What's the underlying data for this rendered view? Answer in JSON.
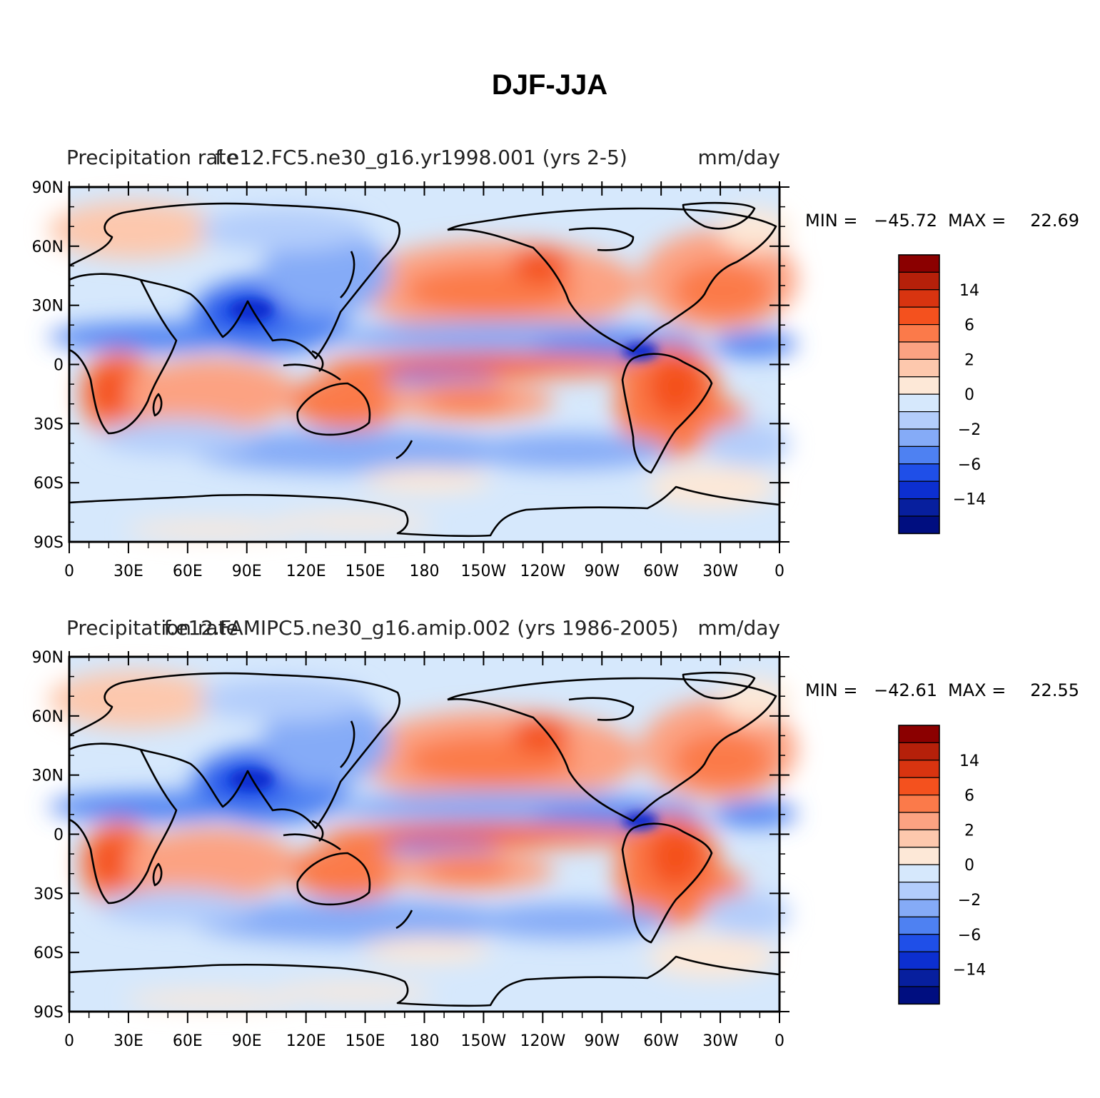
{
  "title": "DJF-JJA",
  "panels": [
    {
      "left_label": "Precipitation rate",
      "center_label": "f.e12.FC5.ne30_g16.yr1998.001 (yrs 2-5)",
      "right_label": "mm/day",
      "min_label": "MIN =",
      "min_value": "−45.72",
      "max_label": "MAX =",
      "max_value": "22.69"
    },
    {
      "left_label": "Precipitation rate",
      "center_label": "f.e12.FAMIPC5.ne30_g16.amip.002 (yrs 1986-2005)",
      "right_label": "mm/day",
      "min_label": "MIN =",
      "min_value": "−42.61",
      "max_label": "MAX =",
      "max_value": "22.55"
    }
  ],
  "axes": {
    "lat_labels": [
      "90N",
      "60N",
      "30N",
      "0",
      "30S",
      "60S",
      "90S"
    ],
    "lon_labels": [
      "0",
      "30E",
      "60E",
      "90E",
      "120E",
      "150E",
      "180",
      "150W",
      "120W",
      "90W",
      "60W",
      "30W",
      "0"
    ]
  },
  "colorbar": {
    "labels": [
      "14",
      "6",
      "2",
      "0",
      "−2",
      "−6",
      "−14"
    ],
    "colors": [
      "#8b0000",
      "#b5200a",
      "#d83410",
      "#f4511e",
      "#fb7a4a",
      "#fca282",
      "#fdc8ad",
      "#fde8d7",
      "#d6e8fc",
      "#b3cdfb",
      "#85abf7",
      "#4e81f2",
      "#1f4fe8",
      "#0c2fd0",
      "#071f9e",
      "#000e80"
    ]
  },
  "chart_data": {
    "type": "heatmap",
    "title": "DJF-JJA",
    "variable": "Precipitation rate",
    "units": "mm/day",
    "panels": [
      {
        "case": "f.e12.FC5.ne30_g16.yr1998.001 (yrs 2-5)",
        "min": -45.72,
        "max": 22.69
      },
      {
        "case": "f.e12.FAMIPC5.ne30_g16.amip.002 (yrs 1986-2005)",
        "min": -42.61,
        "max": 22.55
      }
    ],
    "lat_range": [
      -90,
      90
    ],
    "lon_range": [
      0,
      360
    ],
    "colorbar_labels": [
      14,
      6,
      2,
      0,
      -2,
      -6,
      -14
    ]
  }
}
